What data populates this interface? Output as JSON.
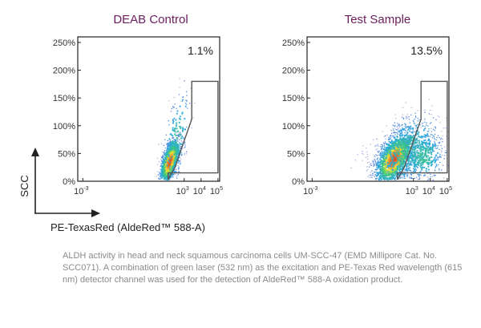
{
  "chart_data": [
    {
      "type": "scatter",
      "title": "DEAB Control",
      "gate_percentage": "1.1%",
      "x_scale": "log",
      "x_ticks": [
        {
          "base": "10",
          "exp": "-3",
          "value": -3
        },
        {
          "base": "10",
          "exp": "3",
          "value": 3
        },
        {
          "base": "10",
          "exp": "4",
          "value": 4
        },
        {
          "base": "10",
          "exp": "5",
          "value": 5
        }
      ],
      "y_ticks": [
        "0%",
        "50%",
        "100%",
        "150%",
        "200%",
        "250%"
      ],
      "ylim": [
        0,
        260
      ],
      "x_range": [
        -3.3,
        5.1
      ],
      "gate": [
        [
          2.05,
          3
        ],
        [
          2.45,
          25
        ],
        [
          3.45,
          112
        ],
        [
          3.45,
          180
        ],
        [
          5.0,
          180
        ],
        [
          5.0,
          15
        ],
        [
          2.05,
          15
        ],
        [
          2.05,
          3
        ]
      ],
      "populations": [
        {
          "n": 1400,
          "cx": 2.15,
          "cy": 35,
          "sx": 0.28,
          "sy": 16,
          "rot": 0.75
        },
        {
          "n": 220,
          "cx": 2.5,
          "cy": 70,
          "sx": 0.45,
          "sy": 40,
          "rot": 0.8
        }
      ],
      "seed": 7
    },
    {
      "type": "scatter",
      "title": "Test Sample",
      "gate_percentage": "13.5%",
      "x_scale": "log",
      "x_ticks": [
        {
          "base": "10",
          "exp": "-3",
          "value": -3
        },
        {
          "base": "10",
          "exp": "3",
          "value": 3
        },
        {
          "base": "10",
          "exp": "4",
          "value": 4
        },
        {
          "base": "10",
          "exp": "5",
          "value": 5
        }
      ],
      "y_ticks": [
        "0%",
        "50%",
        "100%",
        "150%",
        "200%",
        "250%"
      ],
      "ylim": [
        0,
        260
      ],
      "x_range": [
        -3.3,
        5.1
      ],
      "gate": [
        [
          2.05,
          3
        ],
        [
          2.45,
          25
        ],
        [
          3.45,
          112
        ],
        [
          3.45,
          180
        ],
        [
          5.0,
          180
        ],
        [
          5.0,
          15
        ],
        [
          2.05,
          15
        ],
        [
          2.05,
          3
        ]
      ],
      "populations": [
        {
          "n": 1500,
          "cx": 1.85,
          "cy": 40,
          "sx": 0.55,
          "sy": 20,
          "rot": 0.6
        },
        {
          "n": 700,
          "cx": 2.6,
          "cy": 55,
          "sx": 1.0,
          "sy": 32,
          "rot": 0.35
        },
        {
          "n": 350,
          "cx": 3.6,
          "cy": 45,
          "sx": 0.65,
          "sy": 24,
          "rot": 0.1
        }
      ],
      "seed": 19
    }
  ],
  "axes": {
    "ylabel": "SCC",
    "xlabel": "PE-TexasRed (AldeRed™ 588-A)"
  },
  "caption": "ALDH activity in head and neck squamous carcinoma cells UM-SCC-47 (EMD Millipore Cat. No. SCC071).  A combination of green laser (532 nm) as the excitation and PE-Texas Red wavelength (615 nm) detector channel was used for the detection of AldeRed™ 588-A oxidation product."
}
